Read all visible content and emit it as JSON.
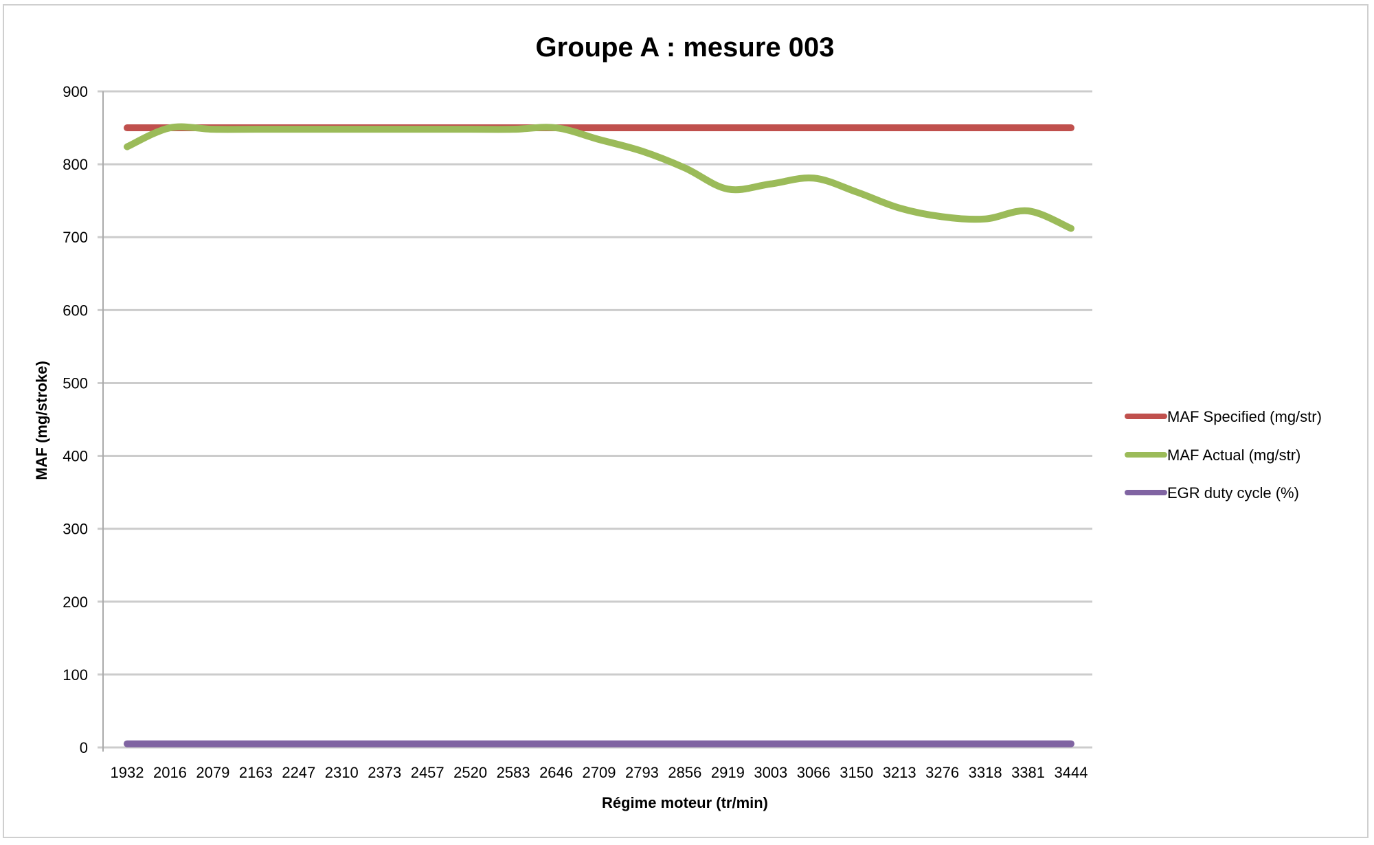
{
  "chart_data": {
    "type": "line",
    "title": "Groupe A : mesure 003",
    "xlabel": "Régime moteur (tr/min)",
    "ylabel": "MAF (mg/stroke)",
    "ylim": [
      0,
      900
    ],
    "yticks": [
      0,
      100,
      200,
      300,
      400,
      500,
      600,
      700,
      800,
      900
    ],
    "grid": true,
    "legend_position": "right",
    "categories": [
      "1932",
      "2016",
      "2079",
      "2163",
      "2247",
      "2310",
      "2373",
      "2457",
      "2520",
      "2583",
      "2646",
      "2709",
      "2793",
      "2856",
      "2919",
      "3003",
      "3066",
      "3150",
      "3213",
      "3276",
      "3318",
      "3381",
      "3444"
    ],
    "series": [
      {
        "name": "MAF Specified (mg/str)",
        "color": "#c0504d",
        "values": [
          850,
          850,
          850,
          850,
          850,
          850,
          850,
          850,
          850,
          850,
          850,
          850,
          850,
          850,
          850,
          850,
          850,
          850,
          850,
          850,
          850,
          850,
          850
        ]
      },
      {
        "name": "MAF Actual (mg/str)",
        "color": "#9bbb59",
        "values": [
          824,
          850,
          848,
          848,
          848,
          848,
          848,
          848,
          848,
          848,
          850,
          834,
          818,
          795,
          766,
          773,
          781,
          762,
          740,
          728,
          725,
          736,
          712
        ]
      },
      {
        "name": "EGR duty cycle (%)",
        "color": "#8064a2",
        "values": [
          5,
          5,
          5,
          5,
          5,
          5,
          5,
          5,
          5,
          5,
          5,
          5,
          5,
          5,
          5,
          5,
          5,
          5,
          5,
          5,
          5,
          5,
          5
        ]
      }
    ]
  }
}
